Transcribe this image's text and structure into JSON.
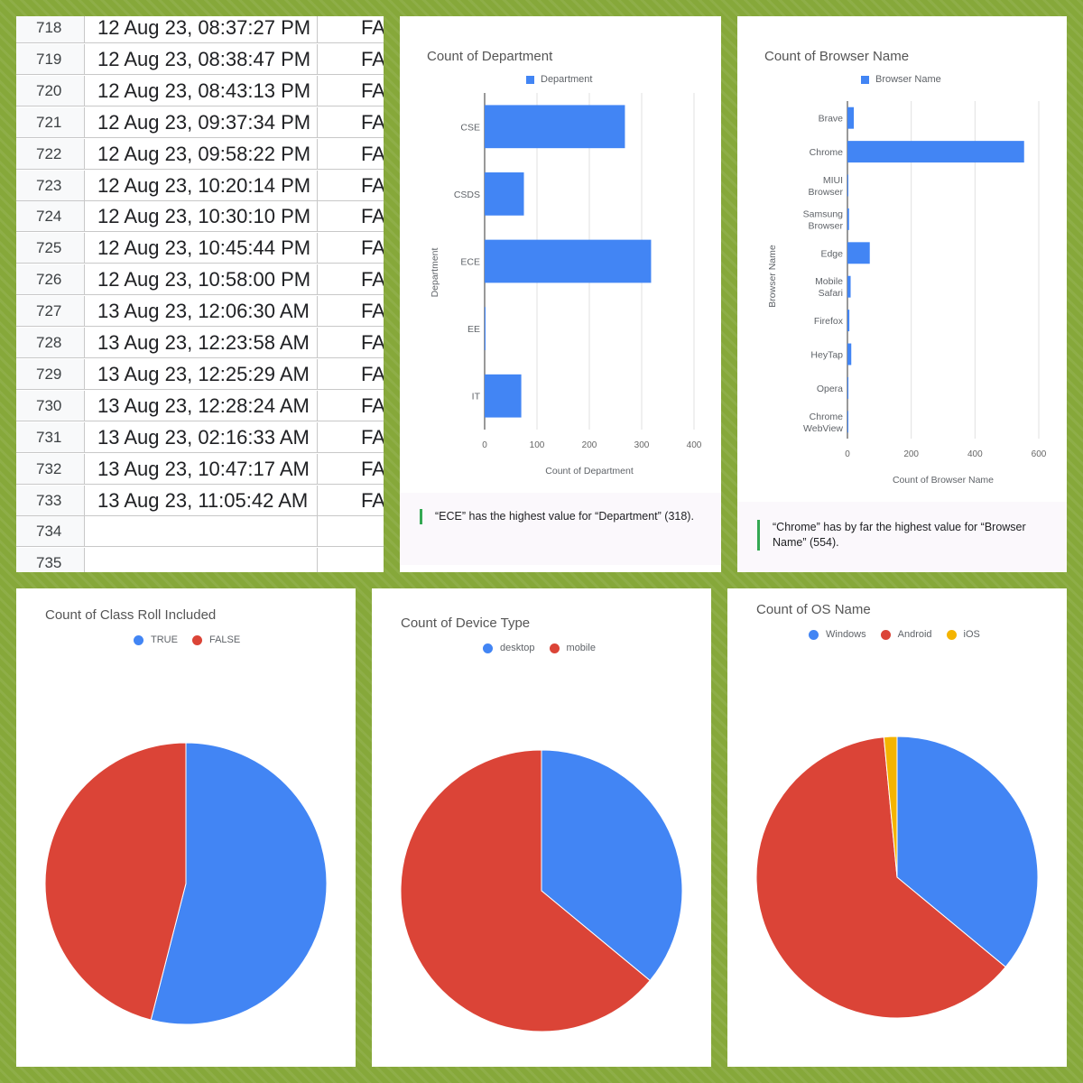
{
  "sheet": {
    "rows": [
      {
        "num": "718",
        "date": "12 Aug 23, 08:37:27 PM",
        "flag": "FA"
      },
      {
        "num": "719",
        "date": "12 Aug 23, 08:38:47 PM",
        "flag": "FA"
      },
      {
        "num": "720",
        "date": "12 Aug 23, 08:43:13 PM",
        "flag": "FA"
      },
      {
        "num": "721",
        "date": "12 Aug 23, 09:37:34 PM",
        "flag": "FA"
      },
      {
        "num": "722",
        "date": "12 Aug 23, 09:58:22 PM",
        "flag": "FA"
      },
      {
        "num": "723",
        "date": "12 Aug 23, 10:20:14 PM",
        "flag": "FA"
      },
      {
        "num": "724",
        "date": "12 Aug 23, 10:30:10 PM",
        "flag": "FA"
      },
      {
        "num": "725",
        "date": "12 Aug 23, 10:45:44 PM",
        "flag": "FA"
      },
      {
        "num": "726",
        "date": "12 Aug 23, 10:58:00 PM",
        "flag": "FA"
      },
      {
        "num": "727",
        "date": "13 Aug 23, 12:06:30 AM",
        "flag": "FA"
      },
      {
        "num": "728",
        "date": "13 Aug 23, 12:23:58 AM",
        "flag": "FA"
      },
      {
        "num": "729",
        "date": "13 Aug 23, 12:25:29 AM",
        "flag": "FA"
      },
      {
        "num": "730",
        "date": "13 Aug 23, 12:28:24 AM",
        "flag": "FA"
      },
      {
        "num": "731",
        "date": "13 Aug 23, 02:16:33 AM",
        "flag": "FA"
      },
      {
        "num": "732",
        "date": "13 Aug 23, 10:47:17 AM",
        "flag": "FA"
      },
      {
        "num": "733",
        "date": "13 Aug 23, 11:05:42 AM",
        "flag": "FA"
      },
      {
        "num": "734",
        "date": "",
        "flag": ""
      },
      {
        "num": "735",
        "date": "",
        "flag": ""
      }
    ]
  },
  "insights": {
    "department": "“ECE” has the highest value for “Department” (318).",
    "browser": "“Chrome” has by far the highest value for “Browser Name” (554)."
  },
  "colors": {
    "blue": "#4285f4",
    "red": "#db4437",
    "yellow": "#f4b400",
    "accent_green": "#34a853"
  },
  "chart_data": [
    {
      "type": "bar",
      "orientation": "horizontal",
      "title": "Count of Department",
      "xlabel": "Count of Department",
      "ylabel": "Department",
      "legend": [
        "Department"
      ],
      "legend_position": "top",
      "categories": [
        "CSE",
        "CSDS",
        "ECE",
        "EE",
        "IT"
      ],
      "values": [
        268,
        75,
        318,
        1,
        70
      ],
      "xticks": [
        "0",
        "100",
        "200",
        "300",
        "400"
      ],
      "xlim": [
        0,
        400
      ],
      "grid": true,
      "color": "#4285f4"
    },
    {
      "type": "bar",
      "orientation": "horizontal",
      "title": "Count of Browser Name",
      "xlabel": "Count of Browser Name",
      "ylabel": "Browser Name",
      "legend": [
        "Browser Name"
      ],
      "legend_position": "top",
      "categories": [
        "Brave",
        "Chrome",
        "MIUI Browser",
        "Samsung Browser",
        "Edge",
        "Mobile Safari",
        "Firefox",
        "HeyTap",
        "Opera",
        "Chrome WebView"
      ],
      "values": [
        20,
        554,
        2,
        5,
        70,
        10,
        6,
        12,
        3,
        1
      ],
      "xticks": [
        "0",
        "200",
        "400",
        "600"
      ],
      "xlim": [
        0,
        600
      ],
      "grid": true,
      "color": "#4285f4"
    },
    {
      "type": "pie",
      "title": "Count of Class Roll Included",
      "labels": [
        "TRUE",
        "FALSE"
      ],
      "values": [
        54,
        46
      ],
      "colors": [
        "#4285f4",
        "#db4437"
      ],
      "legend_position": "top"
    },
    {
      "type": "pie",
      "title": "Count of Device Type",
      "labels": [
        "desktop",
        "mobile"
      ],
      "values": [
        36,
        64
      ],
      "colors": [
        "#4285f4",
        "#db4437"
      ],
      "legend_position": "top"
    },
    {
      "type": "pie",
      "title": "Count of OS Name",
      "labels": [
        "Windows",
        "Android",
        "iOS"
      ],
      "values": [
        36,
        62.5,
        1.5
      ],
      "colors": [
        "#4285f4",
        "#db4437",
        "#f4b400"
      ],
      "legend_position": "top"
    }
  ]
}
